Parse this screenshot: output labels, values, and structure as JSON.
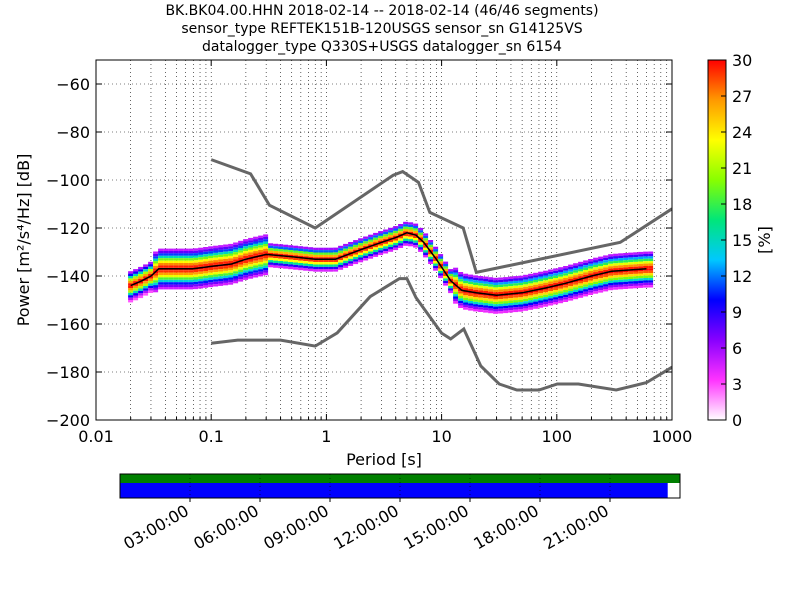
{
  "chart_data": {
    "type": "heatmap",
    "title_lines": [
      "BK.BK04.00.HHN   2018-02-14 -- 2018-02-14  (46/46 segments)",
      "sensor_type REFTEK151B-120USGS sensor_sn G14125VS",
      "datalogger_type Q330S+USGS datalogger_sn 6154"
    ],
    "xlabel": "Period [s]",
    "ylabel": "Power [m²/s⁴/Hz] [dB]",
    "x_scale": "log",
    "xlim": [
      0.01,
      1000
    ],
    "ylim": [
      -200,
      -50
    ],
    "x_ticks": [
      {
        "v": 0.01,
        "label": "0.01"
      },
      {
        "v": 0.1,
        "label": "0.1"
      },
      {
        "v": 1,
        "label": "1"
      },
      {
        "v": 10,
        "label": "10"
      },
      {
        "v": 100,
        "label": "100"
      },
      {
        "v": 1000,
        "label": "1000"
      }
    ],
    "y_ticks": [
      {
        "v": -60,
        "label": "−60"
      },
      {
        "v": -80,
        "label": "−80"
      },
      {
        "v": -100,
        "label": "−100"
      },
      {
        "v": -120,
        "label": "−120"
      },
      {
        "v": -140,
        "label": "−140"
      },
      {
        "v": -160,
        "label": "−160"
      },
      {
        "v": -180,
        "label": "−180"
      },
      {
        "v": -200,
        "label": "−200"
      }
    ],
    "colorbar": {
      "label": "[%]",
      "range": [
        0,
        30
      ],
      "ticks": [
        {
          "v": 0,
          "label": "0"
        },
        {
          "v": 3,
          "label": "3"
        },
        {
          "v": 6,
          "label": "6"
        },
        {
          "v": 9,
          "label": "9"
        },
        {
          "v": 12,
          "label": "12"
        },
        {
          "v": 15,
          "label": "15"
        },
        {
          "v": 18,
          "label": "18"
        },
        {
          "v": 21,
          "label": "21"
        },
        {
          "v": 24,
          "label": "24"
        },
        {
          "v": 27,
          "label": "27"
        },
        {
          "v": 30,
          "label": "30"
        }
      ],
      "colormap": [
        "#ffffff",
        "#ff33ff",
        "#8800ff",
        "#0000ff",
        "#00c8ff",
        "#00e67a",
        "#88ff00",
        "#ffff00",
        "#ff9900",
        "#ff0000"
      ]
    },
    "noise_models": [
      {
        "name": "NHNM",
        "x": [
          0.1,
          0.22,
          0.32,
          0.8,
          3.8,
          4.6,
          6.3,
          7.9,
          15.4,
          20,
          354.8,
          1000
        ],
        "y": [
          -91.5,
          -97.4,
          -110.5,
          -120,
          -98,
          -96.5,
          -101,
          -113.5,
          -120,
          -138.5,
          -126,
          -112
        ]
      },
      {
        "name": "NLNM",
        "x": [
          0.1,
          0.17,
          0.4,
          0.8,
          1.24,
          2.4,
          4.3,
          5,
          6,
          10,
          12,
          15.6,
          21.9,
          31.6,
          45,
          70,
          101,
          154,
          328,
          600,
          1000
        ],
        "y": [
          -168,
          -166.7,
          -166.7,
          -169.2,
          -163.7,
          -148.6,
          -141.1,
          -141.1,
          -149,
          -163.8,
          -166.2,
          -162.1,
          -177.5,
          -185,
          -187.5,
          -187.5,
          -185,
          -185,
          -187.5,
          -184.4,
          -178
        ]
      }
    ],
    "mean_psd": {
      "x": [
        0.02,
        0.025,
        0.03,
        0.035,
        0.05,
        0.07,
        0.1,
        0.15,
        0.2,
        0.3,
        0.5,
        0.8,
        1.2,
        2,
        3,
        4,
        5,
        6,
        7,
        9,
        12,
        15,
        20,
        30,
        50,
        80,
        120,
        200,
        300,
        600
      ],
      "y": [
        -144,
        -142,
        -140,
        -137,
        -137,
        -137,
        -136,
        -135,
        -133,
        -131,
        -132,
        -133,
        -133,
        -129,
        -126,
        -124,
        -122,
        -123,
        -126,
        -133,
        -142,
        -146,
        -147,
        -148,
        -147,
        -145,
        -143,
        -140,
        -138,
        -137
      ]
    },
    "coverage": {
      "time_ticks": [
        "03:00:00",
        "06:00:00",
        "09:00:00",
        "12:00:00",
        "15:00:00",
        "18:00:00",
        "21:00:00"
      ],
      "time_range_hours": [
        0,
        24
      ],
      "data_end_fraction": 0.978,
      "data_color": "#0000ff",
      "psd_color": "#008000"
    }
  }
}
